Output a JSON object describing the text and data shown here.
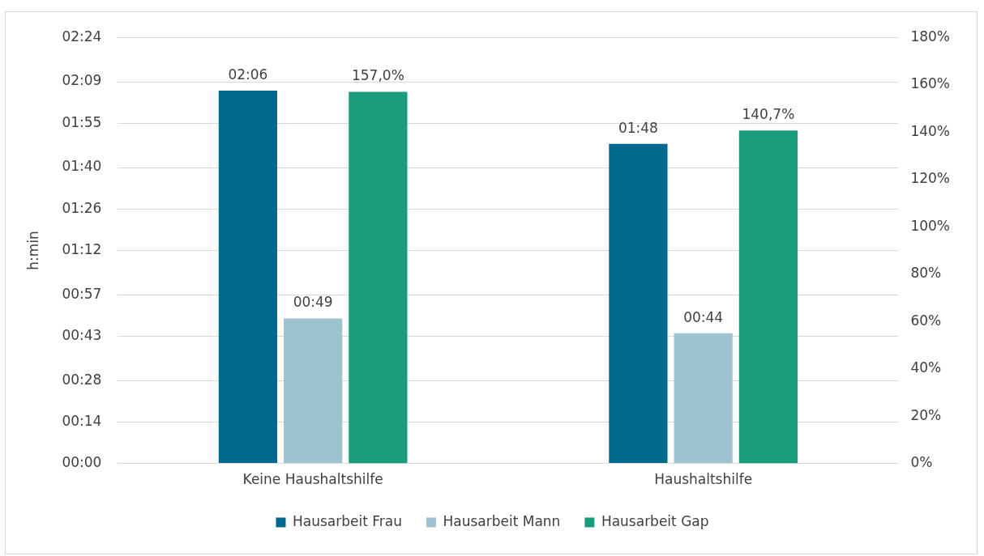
{
  "chart_data": {
    "type": "bar",
    "categories": [
      "Keine Haushaltshilfe",
      "Haushaltshilfe"
    ],
    "ylabel": "h:min",
    "series": [
      {
        "name": "Hausarbeit Frau",
        "color": "#006a8e",
        "values": [
          126,
          108
        ],
        "value_labels": [
          "02:06",
          "01:48"
        ]
      },
      {
        "name": "Hausarbeit Mann",
        "color": "#9dc3d1",
        "values": [
          49,
          44
        ],
        "value_labels": [
          "00:49",
          "00:44"
        ]
      },
      {
        "name": "Hausarbeit Gap",
        "color": "#189c7c",
        "values": [
          157.0,
          140.7
        ],
        "value_labels": [
          "157,0%",
          "140,7%"
        ],
        "axis": "y2"
      }
    ],
    "ylim": [
      0,
      144
    ],
    "yticks": [
      {
        "value": 0,
        "label": "00:00"
      },
      {
        "value": 14,
        "label": "00:14"
      },
      {
        "value": 28,
        "label": "00:28"
      },
      {
        "value": 43,
        "label": "00:43"
      },
      {
        "value": 57,
        "label": "00:57"
      },
      {
        "value": 72,
        "label": "01:12"
      },
      {
        "value": 86,
        "label": "01:26"
      },
      {
        "value": 100,
        "label": "01:40"
      },
      {
        "value": 115,
        "label": "01:55"
      },
      {
        "value": 129,
        "label": "02:09"
      },
      {
        "value": 144,
        "label": "02:24"
      }
    ],
    "y2lim": [
      0,
      180
    ],
    "y2ticks": [
      {
        "value": 0,
        "label": "0%"
      },
      {
        "value": 20,
        "label": "20%"
      },
      {
        "value": 40,
        "label": "40%"
      },
      {
        "value": 60,
        "label": "60%"
      },
      {
        "value": 80,
        "label": "80%"
      },
      {
        "value": 100,
        "label": "100%"
      },
      {
        "value": 120,
        "label": "120%"
      },
      {
        "value": 140,
        "label": "140%"
      },
      {
        "value": 160,
        "label": "160%"
      },
      {
        "value": 180,
        "label": "180%"
      }
    ],
    "grid": "y",
    "legend": "bottom"
  }
}
